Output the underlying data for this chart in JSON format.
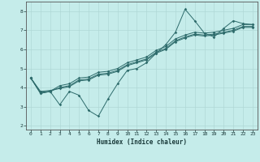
{
  "xlabel": "Humidex (Indice chaleur)",
  "ylabel": "",
  "xlim": [
    -0.5,
    23.5
  ],
  "ylim": [
    1.8,
    8.5
  ],
  "yticks": [
    2,
    3,
    4,
    5,
    6,
    7,
    8
  ],
  "xticks": [
    0,
    1,
    2,
    3,
    4,
    5,
    6,
    7,
    8,
    9,
    10,
    11,
    12,
    13,
    14,
    15,
    16,
    17,
    18,
    19,
    20,
    21,
    22,
    23
  ],
  "background_color": "#c5ecea",
  "grid_color": "#b0d8d6",
  "line_color": "#2d6b6b",
  "series": [
    [
      4.5,
      3.7,
      3.8,
      3.1,
      3.8,
      3.6,
      2.8,
      2.5,
      3.4,
      4.2,
      4.9,
      5.0,
      5.3,
      5.8,
      6.25,
      6.9,
      8.1,
      7.5,
      6.85,
      6.65,
      7.1,
      7.5,
      7.35,
      7.3
    ],
    [
      4.5,
      3.7,
      3.8,
      4.1,
      4.2,
      4.5,
      4.55,
      4.8,
      4.85,
      5.0,
      5.3,
      5.45,
      5.6,
      5.95,
      6.15,
      6.55,
      6.75,
      6.9,
      6.85,
      6.9,
      7.0,
      7.1,
      7.3,
      7.3
    ],
    [
      4.5,
      3.75,
      3.8,
      4.0,
      4.1,
      4.4,
      4.45,
      4.7,
      4.75,
      4.9,
      5.2,
      5.35,
      5.5,
      5.85,
      6.05,
      6.45,
      6.65,
      6.8,
      6.75,
      6.8,
      6.9,
      7.0,
      7.2,
      7.2
    ],
    [
      4.5,
      3.8,
      3.85,
      3.95,
      4.05,
      4.35,
      4.4,
      4.65,
      4.7,
      4.85,
      5.15,
      5.3,
      5.45,
      5.8,
      6.0,
      6.4,
      6.6,
      6.75,
      6.7,
      6.75,
      6.85,
      6.95,
      7.15,
      7.15
    ]
  ],
  "series_x": [
    [
      0,
      1,
      2,
      3,
      4,
      5,
      6,
      7,
      8,
      9,
      10,
      11,
      12,
      13,
      14,
      15,
      16,
      17,
      18,
      19,
      20,
      21,
      22,
      23
    ],
    [
      0,
      1,
      2,
      3,
      4,
      5,
      6,
      7,
      8,
      9,
      10,
      11,
      12,
      13,
      14,
      15,
      16,
      17,
      18,
      19,
      20,
      21,
      22,
      23
    ],
    [
      0,
      1,
      2,
      3,
      4,
      5,
      6,
      7,
      8,
      9,
      10,
      11,
      12,
      13,
      14,
      15,
      16,
      17,
      18,
      19,
      20,
      21,
      22,
      23
    ],
    [
      0,
      1,
      2,
      3,
      4,
      5,
      6,
      7,
      8,
      9,
      10,
      11,
      12,
      13,
      14,
      15,
      16,
      17,
      18,
      19,
      20,
      21,
      22,
      23
    ]
  ]
}
